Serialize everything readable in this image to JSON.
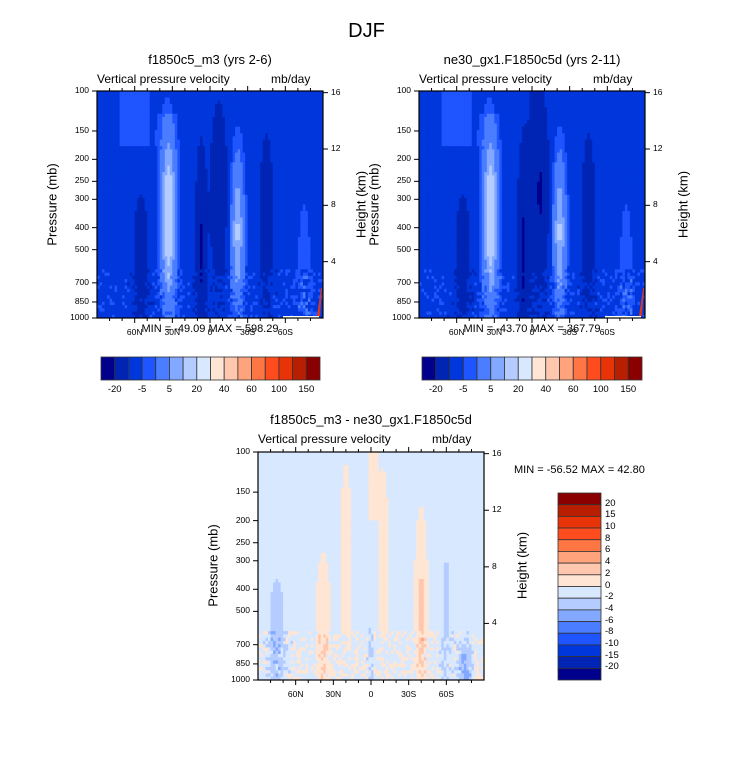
{
  "figure": {
    "title": "DJF"
  },
  "chart_data": [
    {
      "type": "heatmap",
      "panel": "top-left",
      "title": "f1850c5_m3 (yrs 2-6)",
      "left_string": "Vertical pressure velocity",
      "right_string": "mb/day",
      "xlabel": "",
      "ylabel": "Pressure (mb)",
      "ylabel_right": "Height (km)",
      "x_ticks": [
        "60N",
        "30N",
        "0",
        "30S",
        "60S"
      ],
      "x_tick_values": [
        60,
        30,
        0,
        -30,
        -60
      ],
      "xlim": [
        90,
        -90
      ],
      "y_ticks": [
        "100",
        "150",
        "200",
        "250",
        "300",
        "400",
        "500",
        "700",
        "850",
        "1000"
      ],
      "y_tick_values": [
        100,
        150,
        200,
        250,
        300,
        400,
        500,
        700,
        850,
        1000
      ],
      "ylim": [
        1000,
        100
      ],
      "y_scale": "log",
      "y_right_ticks": [
        "16",
        "12",
        "8",
        "4"
      ],
      "min_max_text": "MIN = -49.09  MAX = 598.29",
      "min": -49.09,
      "max": 598.29,
      "colorbar": {
        "orientation": "horizontal",
        "placement": "bottom",
        "labels": [
          "-20",
          "-5",
          "5",
          "20",
          "40",
          "60",
          "100",
          "150"
        ],
        "levels": [
          -20,
          -10,
          -5,
          -2,
          5,
          10,
          20,
          30,
          40,
          50,
          60,
          80,
          100,
          120,
          150
        ]
      },
      "features": [
        {
          "lat": 35,
          "p_top": 150,
          "description": "light/weak descent column near 30N"
        },
        {
          "lat": 5,
          "p_top": 200,
          "description": "strong ascent (dark blue) near equator"
        },
        {
          "lat": -25,
          "p_top": 200,
          "description": "light column near 30S"
        }
      ]
    },
    {
      "type": "heatmap",
      "panel": "top-right",
      "title": "ne30_gx1.F1850c5d (yrs 2-11)",
      "left_string": "Vertical pressure velocity",
      "right_string": "mb/day",
      "xlabel": "",
      "ylabel": "Pressure (mb)",
      "ylabel_right": "Height (km)",
      "x_ticks": [
        "60N",
        "30N",
        "0",
        "30S",
        "60S"
      ],
      "x_tick_values": [
        60,
        30,
        0,
        -30,
        -60
      ],
      "xlim": [
        90,
        -90
      ],
      "y_ticks": [
        "100",
        "150",
        "200",
        "250",
        "300",
        "400",
        "500",
        "700",
        "850",
        "1000"
      ],
      "y_tick_values": [
        100,
        150,
        200,
        250,
        300,
        400,
        500,
        700,
        850,
        1000
      ],
      "ylim": [
        1000,
        100
      ],
      "y_scale": "log",
      "y_right_ticks": [
        "16",
        "12",
        "8",
        "4"
      ],
      "min_max_text": "MIN = -43.70  MAX = 367.79",
      "min": -43.7,
      "max": 367.79,
      "colorbar": {
        "orientation": "horizontal",
        "placement": "bottom",
        "labels": [
          "-20",
          "-5",
          "5",
          "20",
          "40",
          "60",
          "100",
          "150"
        ],
        "levels": [
          -20,
          -10,
          -5,
          -2,
          5,
          10,
          20,
          30,
          40,
          50,
          60,
          80,
          100,
          120,
          150
        ]
      }
    },
    {
      "type": "heatmap",
      "panel": "bottom",
      "title": "f1850c5_m3 - ne30_gx1.F1850c5d",
      "left_string": "Vertical pressure velocity",
      "right_string": "mb/day",
      "xlabel": "",
      "ylabel": "Pressure (mb)",
      "ylabel_right": "Height (km)",
      "x_ticks": [
        "60N",
        "30N",
        "0",
        "30S",
        "60S"
      ],
      "x_tick_values": [
        60,
        30,
        0,
        -30,
        -60
      ],
      "xlim": [
        90,
        -90
      ],
      "y_ticks": [
        "100",
        "150",
        "200",
        "250",
        "300",
        "400",
        "500",
        "700",
        "850",
        "1000"
      ],
      "y_tick_values": [
        100,
        150,
        200,
        250,
        300,
        400,
        500,
        700,
        850,
        1000
      ],
      "ylim": [
        1000,
        100
      ],
      "y_scale": "log",
      "y_right_ticks": [
        "16",
        "12",
        "8",
        "4"
      ],
      "min_max_text": "MIN = -56.52  MAX = 42.80",
      "min": -56.52,
      "max": 42.8,
      "colorbar": {
        "orientation": "vertical",
        "placement": "right",
        "labels": [
          "20",
          "15",
          "10",
          "8",
          "6",
          "4",
          "2",
          "0",
          "-2",
          "-4",
          "-6",
          "-8",
          "-10",
          "-15",
          "-20"
        ]
      }
    }
  ],
  "palettes": {
    "full_field": [
      "#00008c",
      "#0024b4",
      "#0037dc",
      "#1e55ff",
      "#4a7dff",
      "#82a8ff",
      "#b4ccff",
      "#d7e8ff",
      "#ffe6d4",
      "#ffc7ae",
      "#ffa37c",
      "#ff7645",
      "#ff4c1f",
      "#e83308",
      "#b81f00",
      "#8a0000"
    ],
    "difference": [
      "#8a0000",
      "#b81f00",
      "#e83308",
      "#ff4c1f",
      "#ff7645",
      "#ffa37c",
      "#ffc7ae",
      "#ffe6d4",
      "#d7e8ff",
      "#b4ccff",
      "#82a8ff",
      "#4a7dff",
      "#1e55ff",
      "#0037dc",
      "#0024b4",
      "#00008c"
    ]
  }
}
